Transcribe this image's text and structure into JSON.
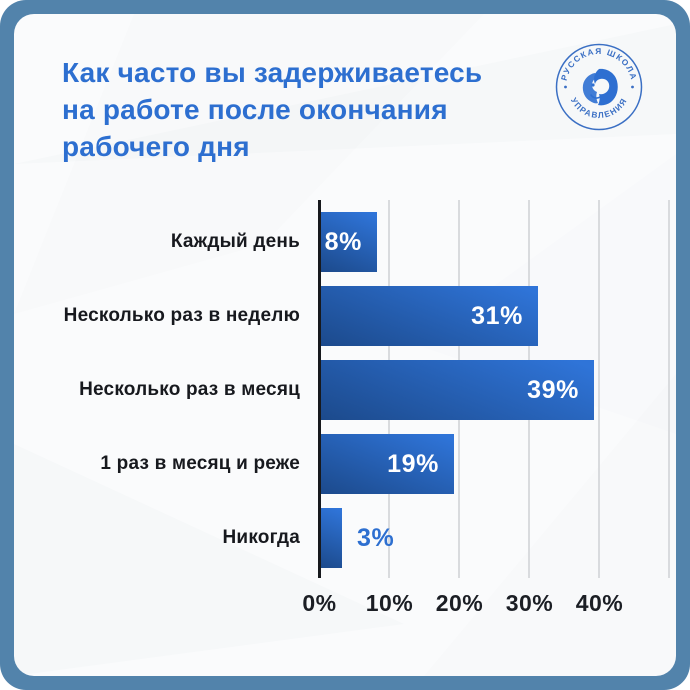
{
  "frame": {
    "border_color": "#5283ab",
    "card_bg": "#fafbfc"
  },
  "header": {
    "title_lines": {
      "0": "Как часто вы задерживаетесь",
      "1": "на работе после окончания",
      "2": "рабочего дня"
    },
    "title_color": "#2d6fd0"
  },
  "logo": {
    "top_text": "РУССКАЯ ШКОЛА",
    "bottom_text": "УПРАВЛЕНИЯ",
    "color": "#3a6fc4"
  },
  "chart_data": {
    "type": "bar",
    "orientation": "horizontal",
    "title": "Как часто вы задерживаетесь на работе после окончания рабочего дня",
    "categories": [
      "Каждый день",
      "Несколько раз в неделю",
      "Несколько раз в месяц",
      "1 раз в месяц и реже",
      "Никогда"
    ],
    "values": [
      8,
      31,
      39,
      19,
      3
    ],
    "value_labels": [
      "8%",
      "31%",
      "39%",
      "19%",
      "3%"
    ],
    "x_ticks": [
      "0%",
      "10%",
      "20%",
      "30%",
      "40%"
    ],
    "x_tick_values": [
      0,
      10,
      20,
      30,
      40
    ],
    "xlim": [
      0,
      50
    ],
    "xlabel": "",
    "ylabel": "",
    "grid": true,
    "legend": false,
    "bar_gradient": [
      "#1c4a8c",
      "#2f74d8"
    ],
    "gridline_color": "#d9dbde",
    "axis_line_color": "#17191d",
    "value_label_inside_color": "#ffffff",
    "value_label_outside_color": "#2d6fd0",
    "outside_label_threshold": 5
  }
}
